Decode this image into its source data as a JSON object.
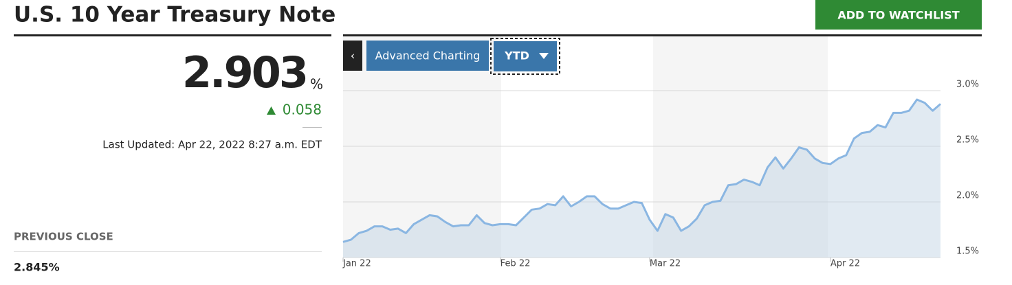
{
  "header": {
    "title": "U.S. 10 Year Treasury Note",
    "watchlist_button": "ADD TO WATCHLIST"
  },
  "quote": {
    "price": "2.903",
    "unit": "%",
    "change": "0.058",
    "last_updated": "Last Updated: Apr 22, 2022 8:27 a.m. EDT",
    "previous_close_label": "PREVIOUS CLOSE",
    "previous_close": "2.845%"
  },
  "toolbar": {
    "collapse": "‹",
    "advanced": "Advanced Charting",
    "range": "YTD"
  },
  "chart_data": {
    "type": "area",
    "color": "#8ab6e2",
    "values": [
      1.64,
      1.66,
      1.72,
      1.74,
      1.78,
      1.78,
      1.75,
      1.76,
      1.72,
      1.8,
      1.84,
      1.88,
      1.87,
      1.82,
      1.78,
      1.79,
      1.79,
      1.88,
      1.81,
      1.79,
      1.8,
      1.8,
      1.79,
      1.86,
      1.93,
      1.94,
      1.98,
      1.97,
      2.05,
      1.96,
      2.0,
      2.05,
      2.05,
      1.98,
      1.94,
      1.94,
      1.97,
      2.0,
      1.99,
      1.84,
      1.74,
      1.89,
      1.86,
      1.74,
      1.78,
      1.85,
      1.97,
      2.0,
      2.01,
      2.15,
      2.16,
      2.2,
      2.18,
      2.15,
      2.31,
      2.4,
      2.3,
      2.39,
      2.49,
      2.47,
      2.39,
      2.35,
      2.34,
      2.39,
      2.42,
      2.57,
      2.62,
      2.63,
      2.69,
      2.67,
      2.8,
      2.8,
      2.82,
      2.92,
      2.89,
      2.82,
      2.88
    ],
    "xlim": [
      0,
      76
    ],
    "xticks": [
      {
        "value": 0,
        "label": "Jan 22"
      },
      {
        "value": 20,
        "label": "Feb 22"
      },
      {
        "value": 39,
        "label": "Mar 22"
      },
      {
        "value": 62,
        "label": "Apr 22"
      }
    ],
    "ylim": [
      1.5,
      3.5
    ],
    "yticks": [
      {
        "value": 1.5,
        "label": "1.5%"
      },
      {
        "value": 2,
        "label": "2.0%"
      },
      {
        "value": 2.5,
        "label": "2.5%"
      },
      {
        "value": 3,
        "label": "3.0%"
      }
    ],
    "grid": true
  }
}
